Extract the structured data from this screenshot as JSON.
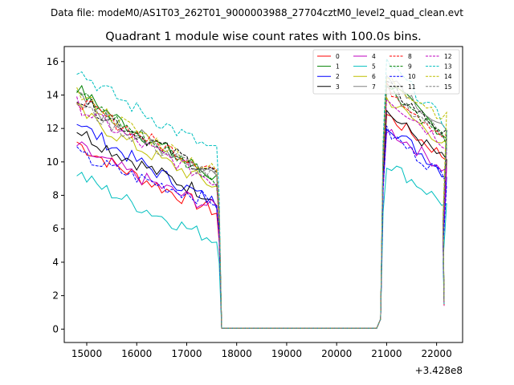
{
  "chart_data": {
    "type": "line",
    "suptitle": "Data file: modeM0/AS1T03_262T01_9000003988_27704cztM0_level2_quad_clean.evt",
    "title": "Quadrant 1 module wise count rates with 100.0s bins.",
    "xlabel": "",
    "ylabel": "",
    "x_offset_label": "+3.428e8",
    "xlim": [
      14550,
      22520
    ],
    "ylim": [
      -0.8,
      16.9
    ],
    "xticks": [
      15000,
      16000,
      17000,
      18000,
      19000,
      20000,
      21000,
      22000
    ],
    "xtick_labels": [
      "15000",
      "16000",
      "17000",
      "18000",
      "19000",
      "20000",
      "21000",
      "22000"
    ],
    "yticks": [
      0,
      2,
      4,
      6,
      8,
      10,
      12,
      14,
      16
    ],
    "ytick_labels": [
      "0",
      "2",
      "4",
      "6",
      "8",
      "10",
      "12",
      "14",
      "16"
    ],
    "segments": [
      {
        "x_start": 14800,
        "x_end": 17600,
        "step": 100
      },
      {
        "x_start": 17700,
        "x_end": 20800,
        "step": 100
      },
      {
        "x_start": 20850,
        "x_end": 22150,
        "step": 100
      }
    ],
    "legend_position": "top-right",
    "series": [
      {
        "name": "0",
        "color": "#ff0000",
        "dash": "solid",
        "start": 11.2,
        "end": 7.0,
        "gap_start": 0.05,
        "peak": 12.8,
        "end2": 10.2
      },
      {
        "name": "1",
        "color": "#008000",
        "dash": "solid",
        "start": 14.5,
        "end": 9.0,
        "gap_start": 0.05,
        "peak": 14.8,
        "end2": 11.5
      },
      {
        "name": "2",
        "color": "#0000ff",
        "dash": "solid",
        "start": 12.5,
        "end": 7.5,
        "gap_start": 0.05,
        "peak": 12.3,
        "end2": 9.2
      },
      {
        "name": "3",
        "color": "#000000",
        "dash": "solid",
        "start": 12.0,
        "end": 7.8,
        "gap_start": 0.05,
        "peak": 13.0,
        "end2": 10.0
      },
      {
        "name": "4",
        "color": "#bf00bf",
        "dash": "solid",
        "start": 11.0,
        "end": 7.2,
        "gap_start": 0.05,
        "peak": 12.0,
        "end2": 9.5
      },
      {
        "name": "5",
        "color": "#00bfbf",
        "dash": "solid",
        "start": 9.4,
        "end": 5.3,
        "gap_start": 0.05,
        "peak": 10.0,
        "end2": 7.4
      },
      {
        "name": "6",
        "color": "#bfbf00",
        "dash": "solid",
        "start": 13.2,
        "end": 8.5,
        "gap_start": 0.05,
        "peak": 13.8,
        "end2": 11.0
      },
      {
        "name": "7",
        "color": "#808080",
        "dash": "solid",
        "start": 14.0,
        "end": 9.2,
        "gap_start": 0.05,
        "peak": 15.5,
        "end2": 11.6
      },
      {
        "name": "8",
        "color": "#ff0000",
        "dash": "dashed",
        "start": 13.8,
        "end": 9.5,
        "gap_start": 0.05,
        "peak": 14.5,
        "end2": 11.4
      },
      {
        "name": "9",
        "color": "#008000",
        "dash": "dashed",
        "start": 14.3,
        "end": 9.0,
        "gap_start": 0.05,
        "peak": 14.6,
        "end2": 11.3
      },
      {
        "name": "10",
        "color": "#0000ff",
        "dash": "dashed",
        "start": 10.5,
        "end": 7.6,
        "gap_start": 0.05,
        "peak": 11.8,
        "end2": 9.0
      },
      {
        "name": "11",
        "color": "#000000",
        "dash": "dashed",
        "start": 14.0,
        "end": 9.3,
        "gap_start": 0.05,
        "peak": 14.6,
        "end2": 11.6
      },
      {
        "name": "12",
        "color": "#bf00bf",
        "dash": "dashed",
        "start": 13.5,
        "end": 8.8,
        "gap_start": 0.05,
        "peak": 13.9,
        "end2": 11.0
      },
      {
        "name": "13",
        "color": "#00bfbf",
        "dash": "dashed",
        "start": 15.6,
        "end": 10.6,
        "gap_start": 0.05,
        "peak": 16.0,
        "end2": 12.2
      },
      {
        "name": "14",
        "color": "#bfbf00",
        "dash": "dashed",
        "start": 14.2,
        "end": 9.4,
        "gap_start": 0.05,
        "peak": 15.0,
        "end2": 12.6
      },
      {
        "name": "15",
        "color": "#808080",
        "dash": "dashed",
        "start": 13.6,
        "end": 9.1,
        "gap_start": 0.05,
        "peak": 14.2,
        "end2": 11.5
      }
    ]
  }
}
